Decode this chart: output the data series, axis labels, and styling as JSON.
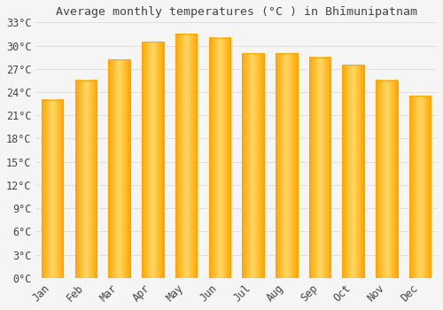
{
  "title": "Average monthly temperatures (°C ) in Bhīmunipatnam",
  "months": [
    "Jan",
    "Feb",
    "Mar",
    "Apr",
    "May",
    "Jun",
    "Jul",
    "Aug",
    "Sep",
    "Oct",
    "Nov",
    "Dec"
  ],
  "values": [
    23.0,
    25.5,
    28.2,
    30.5,
    31.5,
    31.0,
    29.0,
    29.0,
    28.5,
    27.5,
    25.5,
    23.5
  ],
  "bar_color_center": "#FFD966",
  "bar_color_edge": "#FFA500",
  "background_color": "#F5F5F5",
  "grid_color": "#DDDDDD",
  "text_color": "#444444",
  "ylim": [
    0,
    33
  ],
  "yticks": [
    0,
    3,
    6,
    9,
    12,
    15,
    18,
    21,
    24,
    27,
    30,
    33
  ],
  "title_fontsize": 9.5,
  "tick_fontsize": 8.5,
  "bar_width": 0.65
}
